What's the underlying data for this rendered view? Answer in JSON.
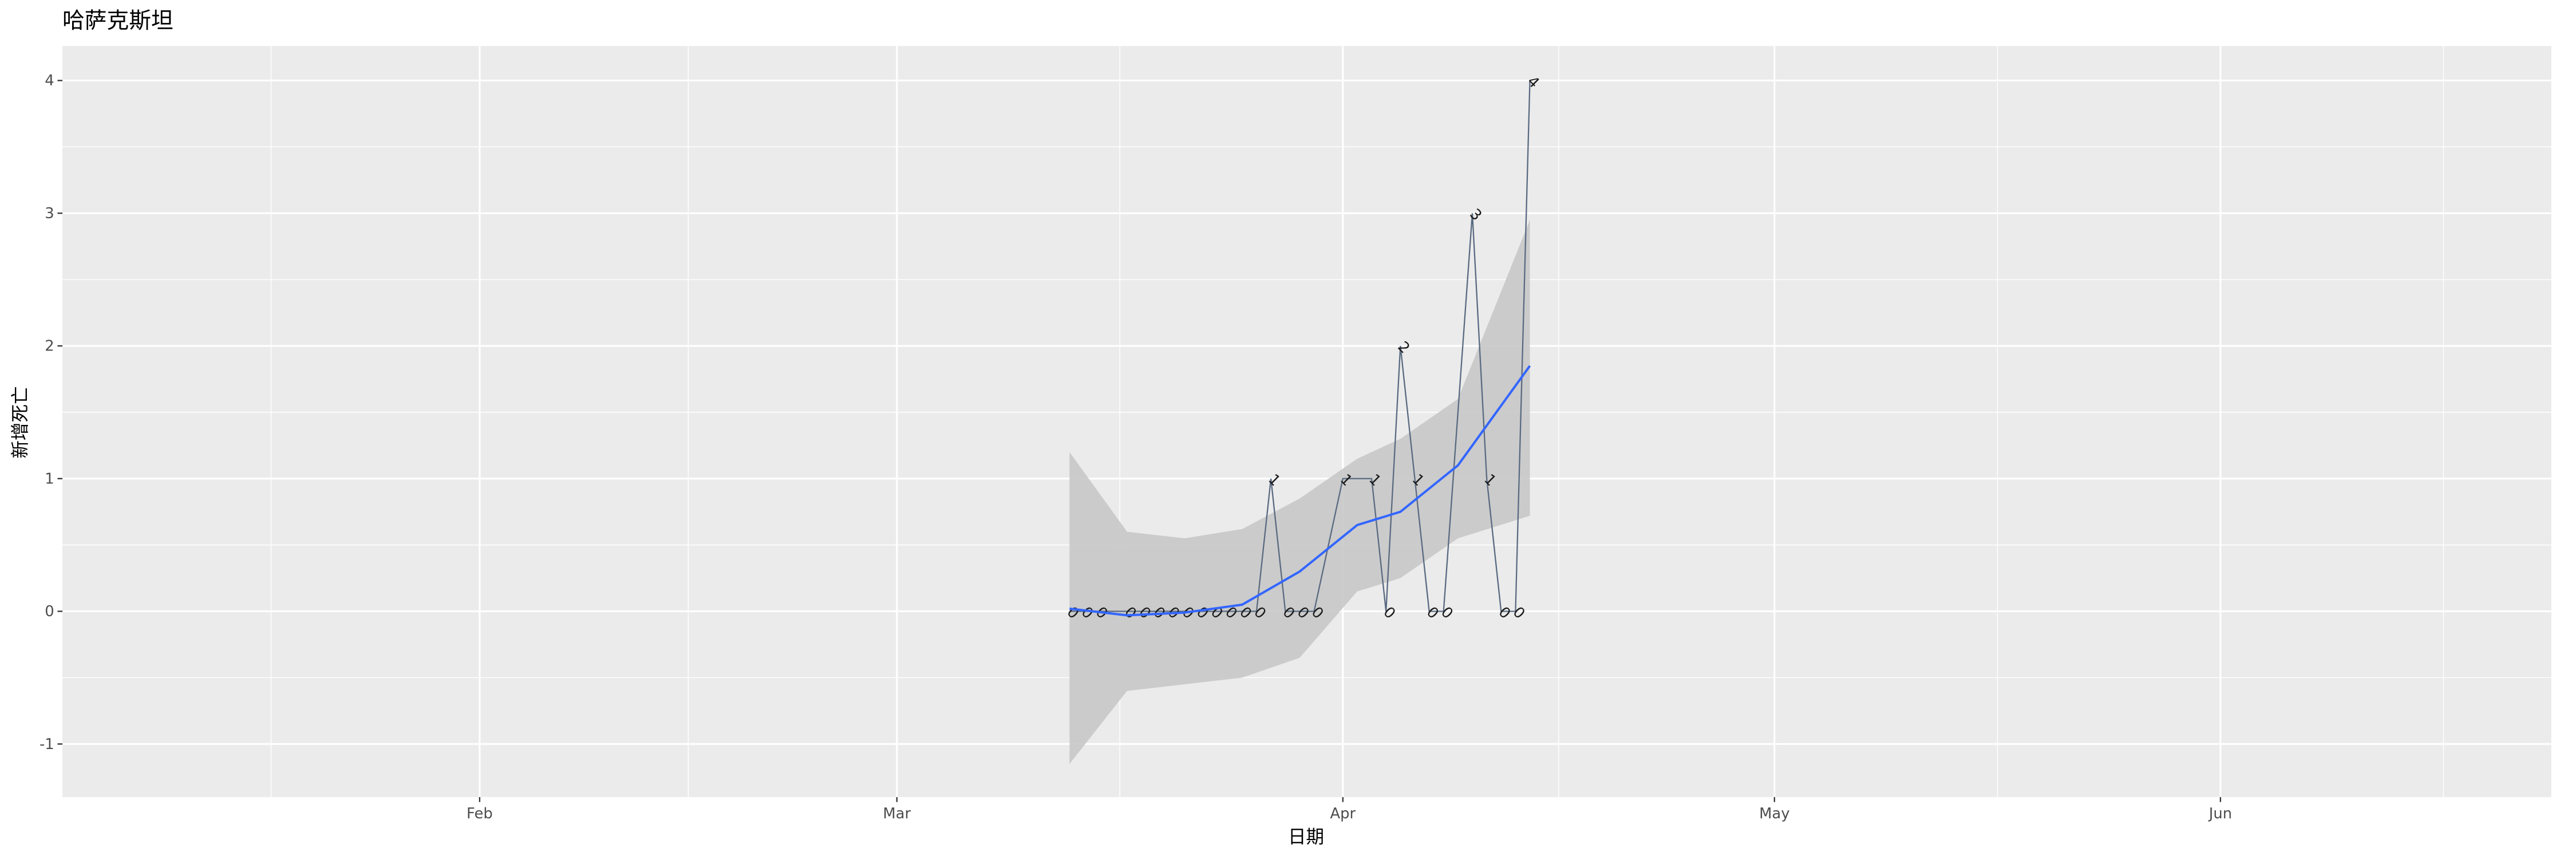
{
  "chart_data": {
    "type": "line",
    "title": "哈萨克斯坦",
    "x_label": "日期",
    "y_label": "新增死亡",
    "x": [
      "03-13",
      "03-14",
      "03-15",
      "03-17",
      "03-18",
      "03-19",
      "03-20",
      "03-21",
      "03-22",
      "03-23",
      "03-24",
      "03-25",
      "03-26",
      "03-27",
      "03-28",
      "03-29",
      "03-30",
      "04-01",
      "04-03",
      "04-04",
      "04-05",
      "04-06",
      "04-07",
      "04-08",
      "04-10",
      "04-11",
      "04-12",
      "04-13",
      "04-14"
    ],
    "series": [
      {
        "name": "新增死亡",
        "color": "#5a6a82",
        "values": [
          0,
          0,
          0,
          0,
          0,
          0,
          0,
          0,
          0,
          0,
          0,
          0,
          0,
          1,
          0,
          0,
          0,
          1,
          1,
          0,
          2,
          1,
          0,
          0,
          3,
          1,
          0,
          0,
          4
        ]
      }
    ],
    "smooth": {
      "color": "#3366ff",
      "band_color": "#c8c8c8",
      "x": [
        "03-13",
        "03-17",
        "03-21",
        "03-25",
        "03-29",
        "04-02",
        "04-05",
        "04-09",
        "04-14"
      ],
      "values": [
        0.02,
        -0.03,
        -0.01,
        0.05,
        0.3,
        0.65,
        0.75,
        1.1,
        1.85
      ],
      "lower": [
        -1.15,
        -0.6,
        -0.55,
        -0.5,
        -0.35,
        0.15,
        0.25,
        0.55,
        0.72
      ],
      "upper": [
        1.2,
        0.6,
        0.55,
        0.62,
        0.85,
        1.15,
        1.3,
        1.6,
        2.95
      ]
    },
    "xlim": [
      "01-03",
      "06-24"
    ],
    "xticks": [
      {
        "value": "02-01",
        "label": "Feb"
      },
      {
        "value": "03-01",
        "label": "Mar"
      },
      {
        "value": "04-01",
        "label": "Apr"
      },
      {
        "value": "05-01",
        "label": "May"
      },
      {
        "value": "06-01",
        "label": "Jun"
      }
    ],
    "ylim": [
      -1.4,
      4.26
    ],
    "yticks": [
      -1,
      0,
      1,
      2,
      3,
      4
    ],
    "grid": true
  }
}
